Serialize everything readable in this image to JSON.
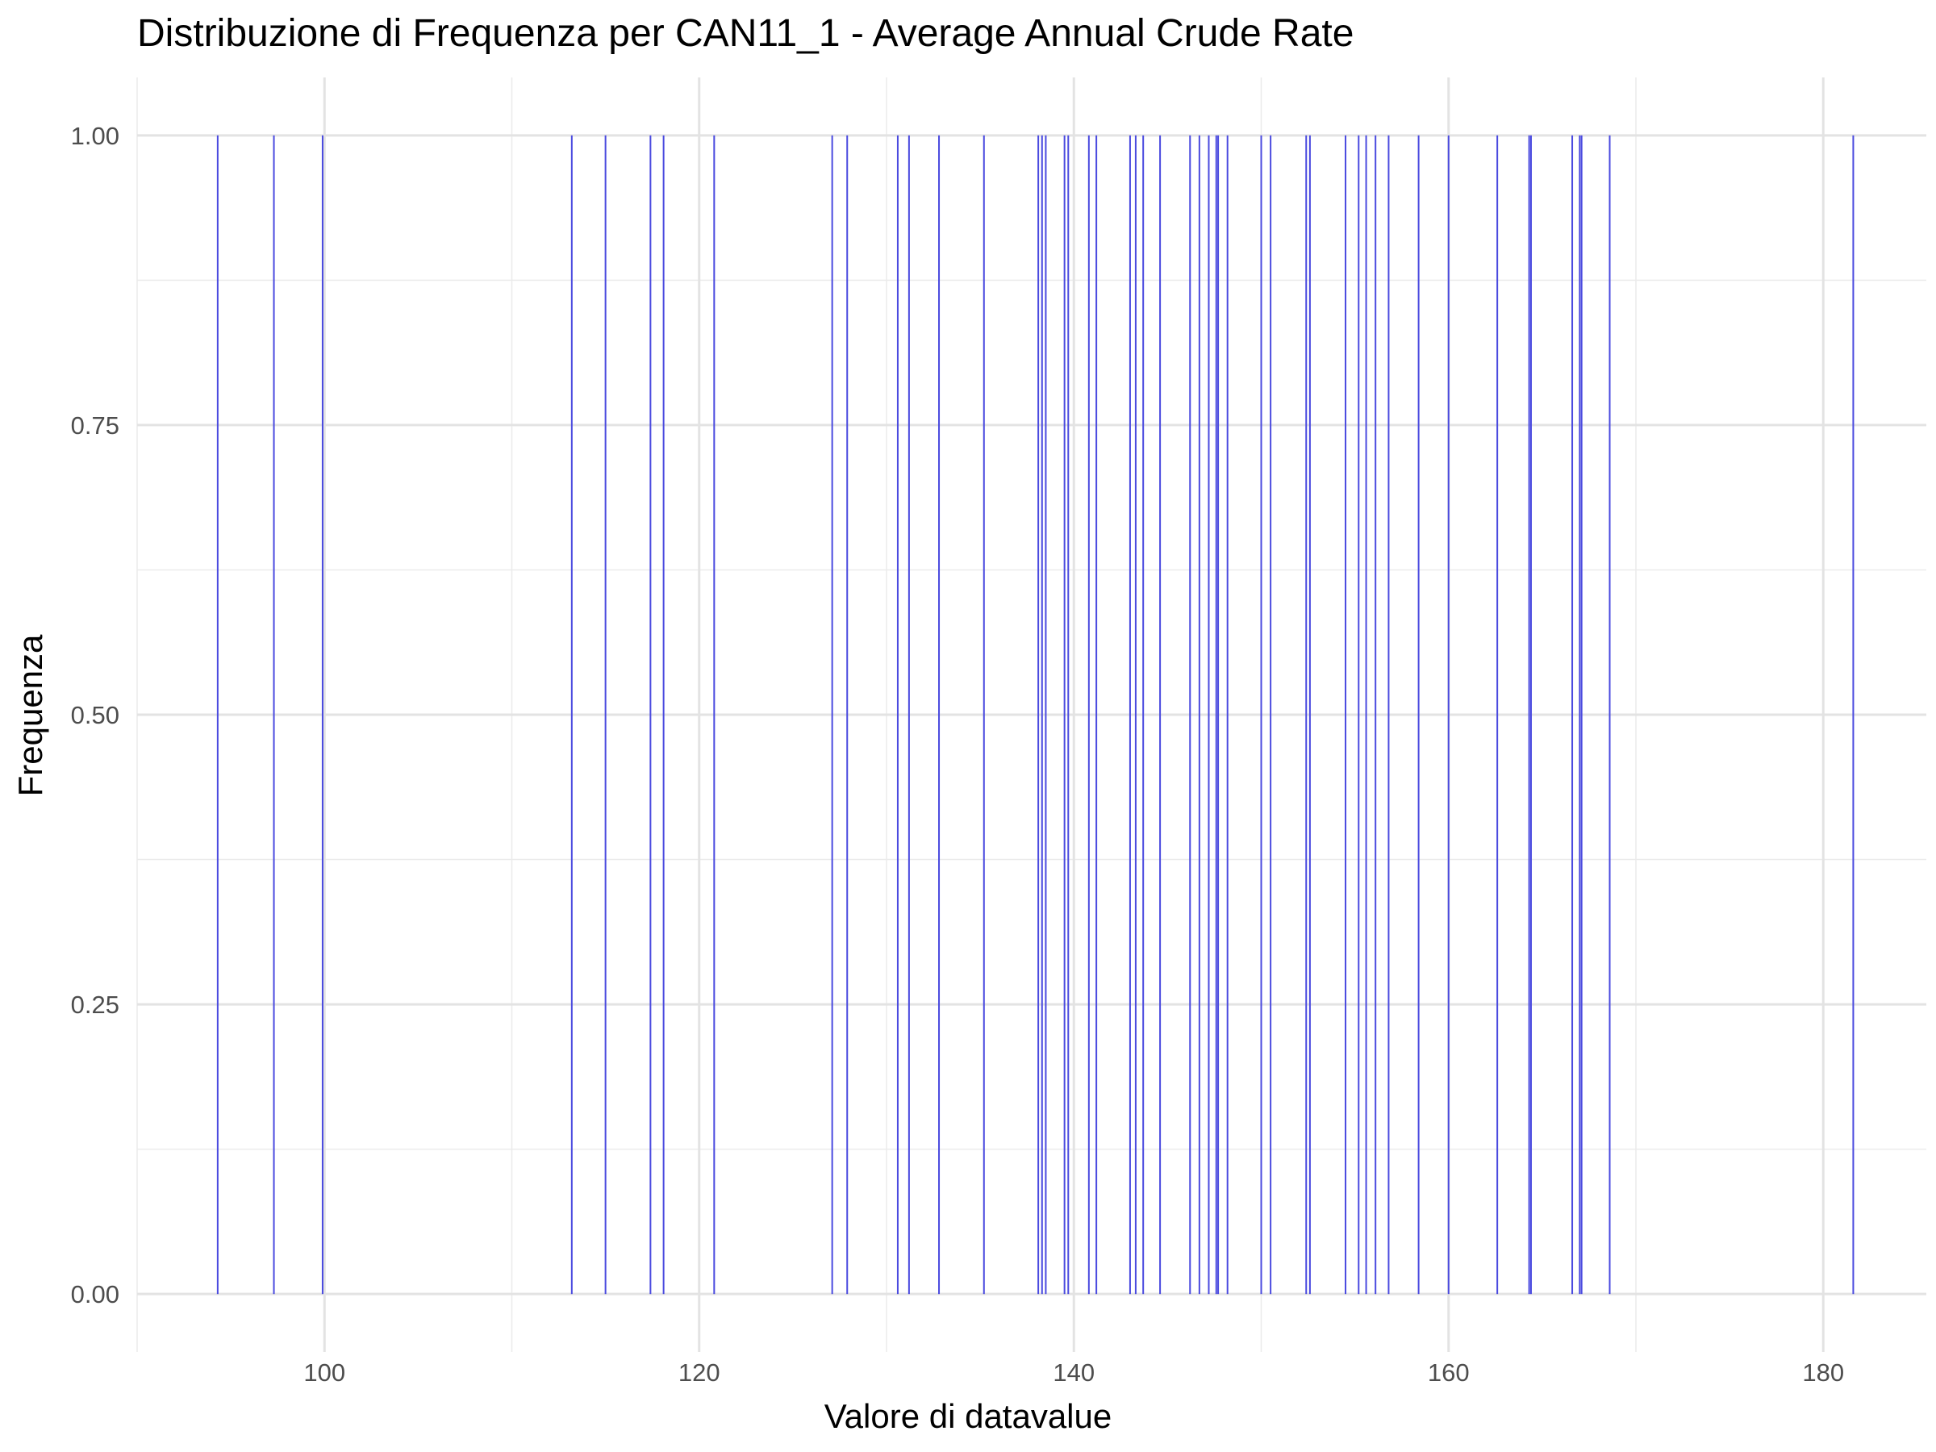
{
  "chart_data": {
    "type": "bar",
    "title": "Distribuzione di Frequenza per CAN11_1 - Average Annual Crude Rate",
    "xlabel": "Valore di datavalue",
    "ylabel": "Frequenza",
    "xlim": [
      90,
      185.5
    ],
    "ylim": [
      -0.05,
      1.05
    ],
    "x_ticks": [
      100,
      120,
      140,
      160,
      180
    ],
    "x_tick_labels": [
      "100",
      "120",
      "140",
      "160",
      "180"
    ],
    "y_ticks": [
      0,
      0.25,
      0.5,
      0.75,
      1
    ],
    "y_tick_labels": [
      "0.00",
      "0.25",
      "0.50",
      "0.75",
      "1.00"
    ],
    "grid": true,
    "bar_color": "#4a4adf",
    "x": [
      94.3,
      97.3,
      99.9,
      113.2,
      115.0,
      117.4,
      118.1,
      120.8,
      127.1,
      127.9,
      130.6,
      131.2,
      132.8,
      135.2,
      138.1,
      138.3,
      138.5,
      139.5,
      139.7,
      140.8,
      141.2,
      143.0,
      143.3,
      143.7,
      144.6,
      146.2,
      146.7,
      147.2,
      147.6,
      147.7,
      148.2,
      150.0,
      150.5,
      152.4,
      152.6,
      154.5,
      155.2,
      155.6,
      156.1,
      156.8,
      158.4,
      160.0,
      162.6,
      164.3,
      164.4,
      166.6,
      167.0,
      167.1,
      168.6,
      181.6
    ],
    "values": [
      1,
      1,
      1,
      1,
      1,
      1,
      1,
      1,
      1,
      1,
      1,
      1,
      1,
      1,
      1,
      1,
      1,
      1,
      1,
      1,
      1,
      1,
      1,
      1,
      1,
      1,
      1,
      1,
      1,
      1,
      1,
      1,
      1,
      1,
      1,
      1,
      1,
      1,
      1,
      1,
      1,
      1,
      1,
      1,
      1,
      1,
      1,
      1,
      1,
      1
    ]
  }
}
